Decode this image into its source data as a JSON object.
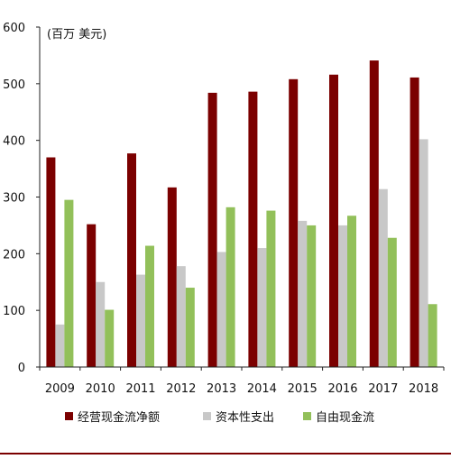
{
  "chart_data": {
    "type": "bar",
    "title": "",
    "unit_label": "(百万 美元)",
    "xlabel": "",
    "ylabel": "",
    "categories": [
      "2009",
      "2010",
      "2011",
      "2012",
      "2013",
      "2014",
      "2015",
      "2016",
      "2017",
      "2018"
    ],
    "series": [
      {
        "name": "经营现金流净额",
        "color": "#7b0000",
        "values": [
          370,
          252,
          377,
          317,
          484,
          486,
          508,
          516,
          541,
          511
        ]
      },
      {
        "name": "资本性支出",
        "color": "#c8c8c8",
        "values": [
          75,
          150,
          163,
          178,
          203,
          210,
          258,
          250,
          314,
          402
        ]
      },
      {
        "name": "自由现金流",
        "color": "#92c05a",
        "values": [
          295,
          101,
          214,
          140,
          282,
          276,
          250,
          267,
          228,
          111
        ]
      }
    ],
    "ylim": [
      0,
      600
    ],
    "yticks": [
      0,
      100,
      200,
      300,
      400,
      500,
      600
    ],
    "grid": false,
    "legend_position": "bottom"
  }
}
